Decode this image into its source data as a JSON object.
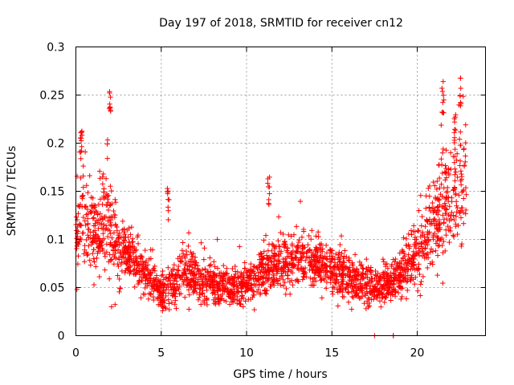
{
  "chart_data": {
    "type": "scatter",
    "title": "Day 197 of 2018, SRMTID for receiver cn12",
    "xlabel": "GPS time / hours",
    "ylabel": "SRMTID / TECUs",
    "xlim": [
      0,
      24
    ],
    "ylim": [
      0,
      0.3
    ],
    "x_ticks": [
      0,
      5,
      10,
      15,
      20
    ],
    "x_tick_labels": [
      "0",
      "5",
      "10",
      "15",
      "20"
    ],
    "y_ticks": [
      0,
      0.05,
      0.1,
      0.15,
      0.2,
      0.25,
      0.3
    ],
    "y_tick_labels": [
      "0",
      "0.05",
      "0.1",
      "0.15",
      "0.2",
      "0.25",
      "0.3"
    ],
    "grid": true,
    "marker": "+",
    "color": "#ff0000",
    "envelope": {
      "x": [
        0.0,
        0.3,
        0.6,
        1.0,
        1.5,
        1.9,
        2.1,
        2.5,
        3.0,
        3.5,
        4.0,
        4.5,
        5.0,
        5.5,
        6.0,
        6.5,
        7.0,
        7.5,
        8.0,
        9.0,
        10.0,
        10.5,
        11.0,
        11.5,
        12.0,
        13.0,
        14.0,
        15.0,
        16.0,
        17.0,
        18.0,
        18.5,
        19.0,
        19.5,
        20.0,
        20.5,
        21.0,
        21.5,
        22.0,
        22.3,
        22.6,
        22.9
      ],
      "center": [
        0.1,
        0.13,
        0.12,
        0.11,
        0.1,
        0.12,
        0.11,
        0.09,
        0.085,
        0.075,
        0.065,
        0.055,
        0.045,
        0.05,
        0.06,
        0.065,
        0.06,
        0.055,
        0.052,
        0.05,
        0.05,
        0.06,
        0.065,
        0.07,
        0.075,
        0.08,
        0.078,
        0.068,
        0.06,
        0.055,
        0.052,
        0.055,
        0.065,
        0.075,
        0.085,
        0.1,
        0.12,
        0.13,
        0.14,
        0.15,
        0.16,
        0.17
      ],
      "spread": [
        0.04,
        0.05,
        0.045,
        0.04,
        0.035,
        0.06,
        0.05,
        0.03,
        0.025,
        0.022,
        0.02,
        0.018,
        0.015,
        0.02,
        0.025,
        0.025,
        0.022,
        0.02,
        0.018,
        0.018,
        0.018,
        0.02,
        0.022,
        0.022,
        0.024,
        0.025,
        0.025,
        0.022,
        0.02,
        0.02,
        0.018,
        0.02,
        0.022,
        0.025,
        0.03,
        0.035,
        0.04,
        0.045,
        0.045,
        0.05,
        0.055,
        0.05
      ]
    },
    "peaks": [
      {
        "x": 2.0,
        "y": 0.265
      },
      {
        "x": 0.3,
        "y": 0.215
      },
      {
        "x": 1.6,
        "y": 0.17
      },
      {
        "x": 5.4,
        "y": 0.155
      },
      {
        "x": 11.3,
        "y": 0.165
      },
      {
        "x": 21.5,
        "y": 0.265
      },
      {
        "x": 22.5,
        "y": 0.27
      },
      {
        "x": 22.2,
        "y": 0.235
      }
    ],
    "n_points": 2400,
    "seed": 197
  }
}
